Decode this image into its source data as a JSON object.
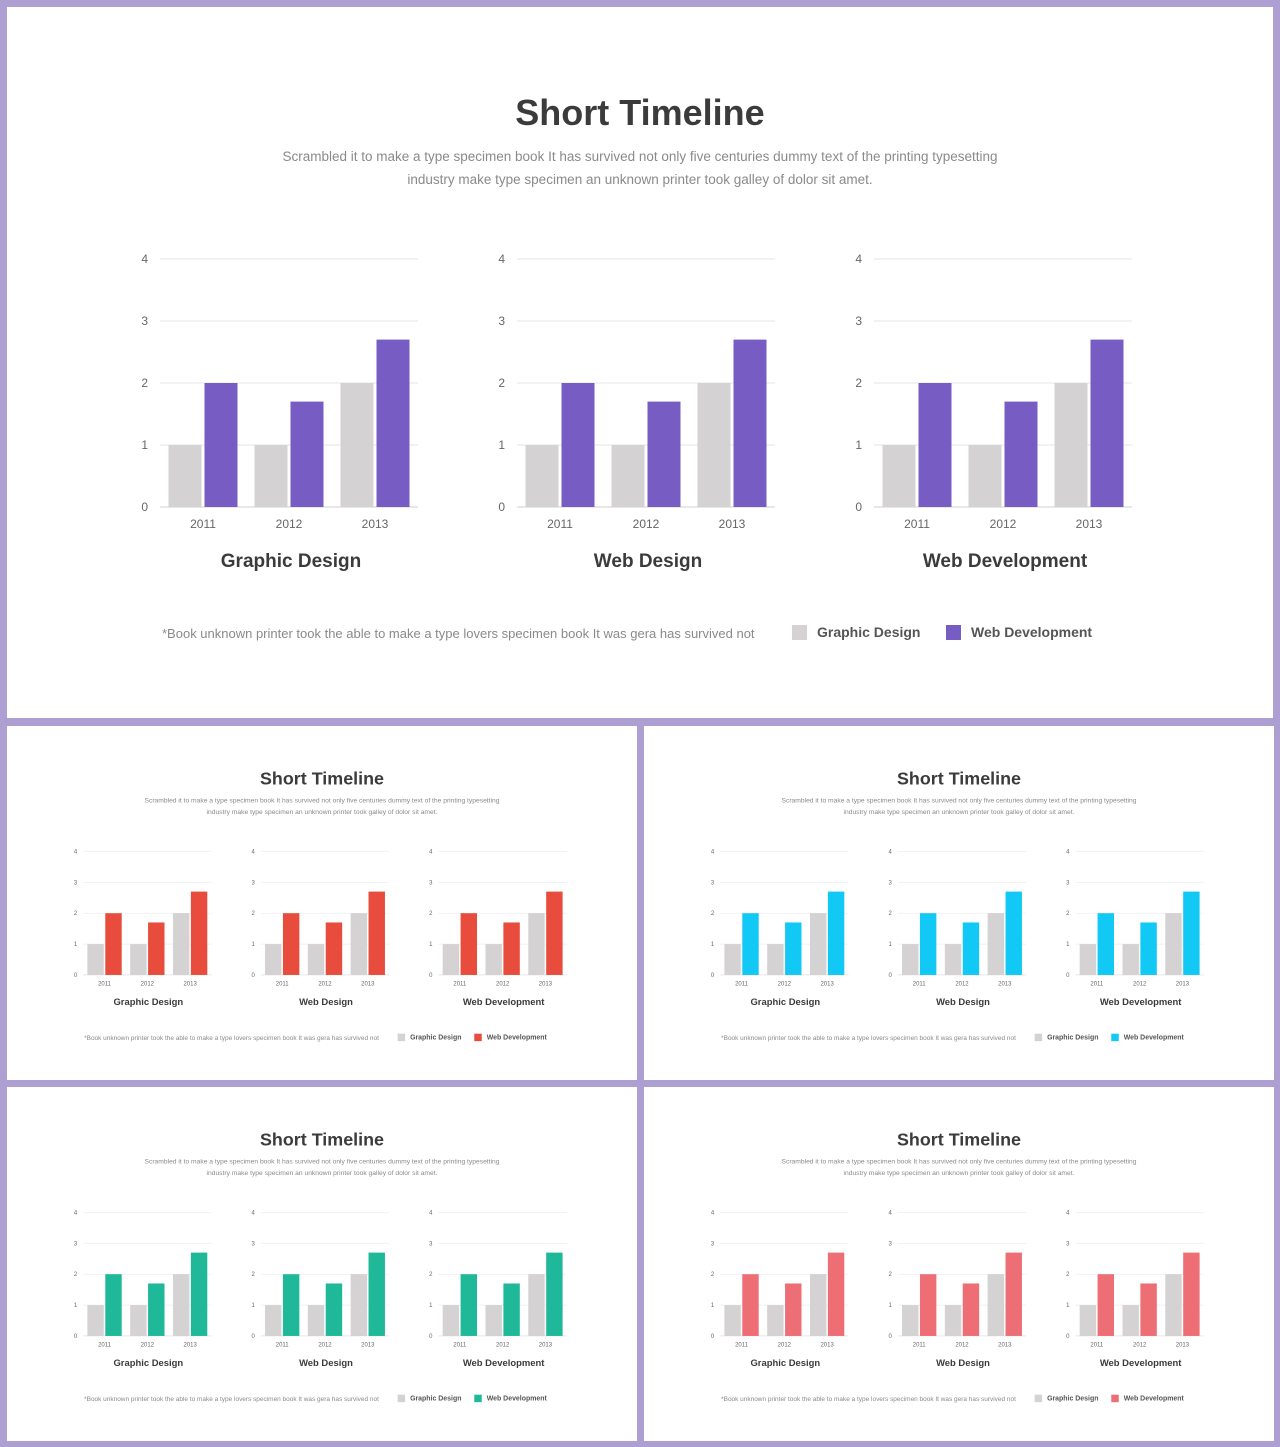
{
  "slides": [
    {
      "title": "Short Timeline",
      "subtitle_lines": [
        "Scrambled it to make a type specimen book It has survived  not only five  centuries  dummy text of the printing typesetting",
        "industry make type specimen an  unknown  printer  took galley  of dolor  sit amet."
      ],
      "footnote": "*Book unknown  printer took the able to make a type lovers  specimen book It was gera has survived  not",
      "accent": "#775cc4"
    },
    {
      "title": "Short Timeline",
      "subtitle_lines": [
        "Scrambled it to make a type specimen book It has survived  not only five  centuries  dummy text of the printing typesetting",
        "industry make type specimen an  unknown  printer  took galley  of dolor  sit amet."
      ],
      "footnote": "*Book unknown  printer took the able to make a type lovers  specimen book It was gera has survived  not",
      "accent": "#e74c3c"
    },
    {
      "title": "Short Timeline",
      "subtitle_lines": [
        "Scrambled it to make a type specimen book It has survived  not only five  centuries  dummy text of the printing typesetting",
        "industry make type specimen an  unknown  printer  took galley  of dolor  sit amet."
      ],
      "footnote": "*Book unknown  printer took the able to make a type lovers  specimen book It was gera has survived  not",
      "accent": "#12c8f4"
    },
    {
      "title": "Short Timeline",
      "subtitle_lines": [
        "Scrambled it to make a type specimen book It has survived  not only five  centuries  dummy text of the printing typesetting",
        "industry make type specimen an  unknown  printer  took galley  of dolor  sit amet."
      ],
      "footnote": "*Book unknown  printer took the able to make a type lovers  specimen book It was gera has survived  not",
      "accent": "#1fb99a"
    },
    {
      "title": "Short Timeline",
      "subtitle_lines": [
        "Scrambled it to make a type specimen book It has survived  not only five  centuries  dummy text of the printing typesetting",
        "industry make type specimen an  unknown  printer  took galley  of dolor  sit amet."
      ],
      "footnote": "*Book unknown  printer took the able to make a type lovers  specimen book It was gera has survived  not",
      "accent": "#ee6e76"
    }
  ],
  "legend": [
    "Graphic Design",
    "Web Development"
  ],
  "base_color": "#d4d2d2",
  "chart_data": [
    {
      "type": "bar",
      "title": "Graphic Design",
      "categories": [
        "2011",
        "2012",
        "2013"
      ],
      "series": [
        {
          "name": "Graphic Design",
          "values": [
            1,
            1,
            2
          ]
        },
        {
          "name": "Web Development",
          "values": [
            2,
            1.7,
            2.7
          ]
        }
      ],
      "ylim": [
        0,
        4
      ],
      "yticks": [
        "0",
        "1",
        "2",
        "3",
        "4"
      ],
      "grid": true,
      "legend_position": "bottom-right"
    },
    {
      "type": "bar",
      "title": "Web Design",
      "categories": [
        "2011",
        "2012",
        "2013"
      ],
      "series": [
        {
          "name": "Graphic Design",
          "values": [
            1,
            1,
            2
          ]
        },
        {
          "name": "Web Development",
          "values": [
            2,
            1.7,
            2.7
          ]
        }
      ],
      "ylim": [
        0,
        4
      ],
      "yticks": [
        "0",
        "1",
        "2",
        "3",
        "4"
      ],
      "grid": true,
      "legend_position": "bottom-right"
    },
    {
      "type": "bar",
      "title": "Web Development",
      "categories": [
        "2011",
        "2012",
        "2013"
      ],
      "series": [
        {
          "name": "Graphic Design",
          "values": [
            1,
            1,
            2
          ]
        },
        {
          "name": "Web Development",
          "values": [
            2,
            1.7,
            2.7
          ]
        }
      ],
      "ylim": [
        0,
        4
      ],
      "yticks": [
        "0",
        "1",
        "2",
        "3",
        "4"
      ],
      "grid": true,
      "legend_position": "bottom-right"
    }
  ]
}
